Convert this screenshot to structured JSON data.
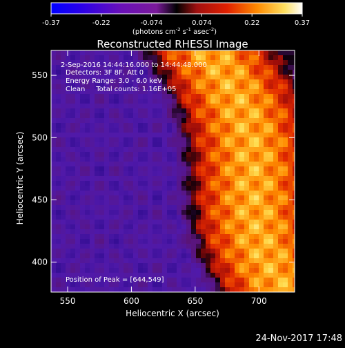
{
  "colorbar": {
    "ticks": [
      "-0.37",
      "-0.22",
      "-0.074",
      "0.074",
      "0.22",
      "0.37"
    ],
    "unit_base": "(photons cm",
    "unit_sup1": "-2",
    "unit_mid": " s",
    "unit_sup2": "-1",
    "unit_end": " asec",
    "unit_sup3": "-2",
    "unit_close": ")"
  },
  "chart_data": {
    "type": "heatmap",
    "title": "Reconstructed RHESSI Image",
    "xlabel": "Heliocentric X (arcsec)",
    "ylabel": "Heliocentric Y (arcsec)",
    "xlim": [
      537,
      728
    ],
    "ylim": [
      376,
      570
    ],
    "x_ticks": [
      "550",
      "600",
      "650",
      "700"
    ],
    "y_ticks": [
      "400",
      "450",
      "500",
      "550"
    ],
    "x_tick_values": [
      550,
      600,
      650,
      700
    ],
    "y_tick_values": [
      400,
      450,
      500,
      550
    ],
    "color_range": [
      -0.37,
      0.37
    ],
    "colormap": "blue-purple-red-yellow-white",
    "annotations": {
      "time": "2-Sep-2016 14:44:16.000 to 14:44:48.000",
      "detectors": "Detectors: 3F 8F, Att 0",
      "energy": "Energy Range: 3.0 - 6.0 keV",
      "method": "Clean     Total counts: 1.16E+05",
      "peak": "Position of Peak = [644,549]"
    },
    "peak_position": [
      644,
      549
    ]
  },
  "footer": {
    "timestamp": "24-Nov-2017 17:48"
  }
}
